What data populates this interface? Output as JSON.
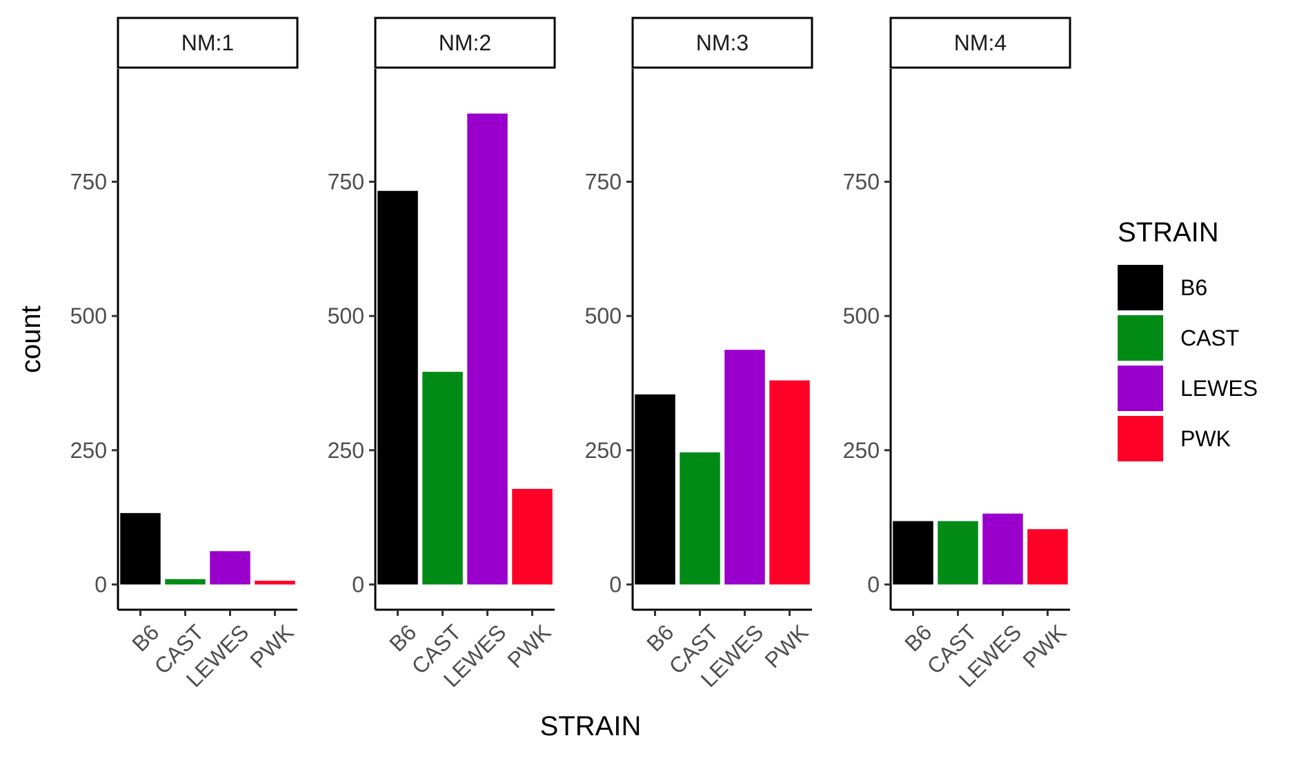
{
  "chart_data": {
    "type": "bar",
    "facet_label": "NM",
    "categories": [
      "B6",
      "CAST",
      "LEWES",
      "PWK"
    ],
    "facets": [
      {
        "label": "NM:1",
        "values": [
          133,
          10,
          62,
          7
        ]
      },
      {
        "label": "NM:2",
        "values": [
          733,
          396,
          877,
          178
        ]
      },
      {
        "label": "NM:3",
        "values": [
          354,
          246,
          437,
          380
        ]
      },
      {
        "label": "NM:4",
        "values": [
          118,
          118,
          132,
          103
        ]
      }
    ],
    "xlabel": "STRAIN",
    "ylabel": "count",
    "ylim": [
      -47,
      960
    ],
    "yticks": [
      0,
      250,
      500,
      750
    ],
    "colors": {
      "B6": "#000000",
      "CAST": "#008B17",
      "LEWES": "#9A00CC",
      "PWK": "#FF0027"
    },
    "legend": {
      "title": "STRAIN",
      "position": "right",
      "items": [
        "B6",
        "CAST",
        "LEWES",
        "PWK"
      ]
    },
    "grid": false
  }
}
